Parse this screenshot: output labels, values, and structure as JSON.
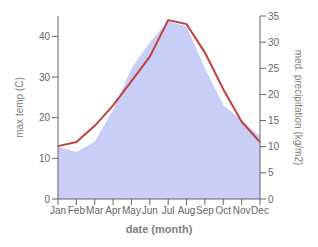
{
  "chart_data": {
    "type": "line",
    "xlabel": "date (month)",
    "ylabel": "max temp (C)",
    "y2label": "med. precipitation (kg/m2)",
    "categories": [
      "Jan",
      "Feb",
      "Mar",
      "Apr",
      "May",
      "Jun",
      "Jul",
      "Aug",
      "Sep",
      "Oct",
      "Nov",
      "Dec"
    ],
    "series": [
      {
        "type": "area",
        "color": "#c8cef5",
        "axis": "y2",
        "values": [
          10,
          9,
          11,
          17,
          25,
          30,
          34,
          33,
          25,
          18,
          15,
          12
        ]
      },
      {
        "type": "line",
        "color": "#c44040",
        "values": [
          13,
          14,
          18,
          23,
          29,
          35,
          44,
          43,
          36,
          27,
          19,
          14
        ]
      }
    ],
    "ylim": [
      0,
      45
    ],
    "yticks": [
      0,
      10,
      20,
      30,
      40
    ],
    "y2lim": [
      0,
      35
    ],
    "y2ticks": [
      0,
      5,
      10,
      15,
      20,
      25,
      30,
      35
    ],
    "grid": false
  }
}
